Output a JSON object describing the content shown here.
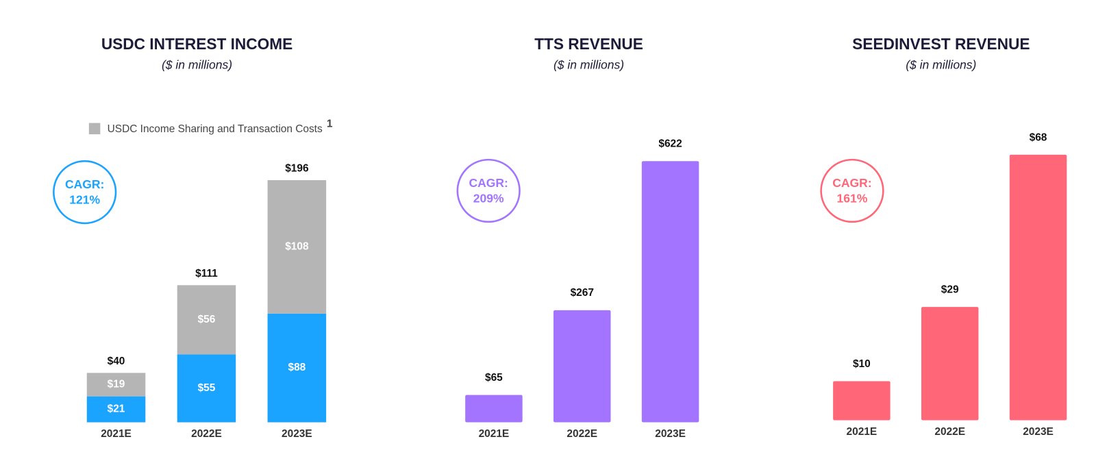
{
  "chart_data": [
    {
      "type": "stacked_bar",
      "title": "USDC INTEREST INCOME",
      "subtitle": "($ in millions)",
      "categories": [
        "2021E",
        "2022E",
        "2023E"
      ],
      "series": [
        {
          "color": "#1aa3ff",
          "values": [
            21,
            55,
            88
          ],
          "value_labels": [
            "$21",
            "$55",
            "$88"
          ]
        },
        {
          "name": "USDC Income Sharing and Transaction Costs",
          "name_note": "1",
          "color": "#b5b5b5",
          "values": [
            19,
            56,
            108
          ],
          "value_labels": [
            "$19",
            "$56",
            "$108"
          ]
        }
      ],
      "totals": [
        40,
        111,
        196
      ],
      "total_labels": [
        "$40",
        "$111",
        "$196"
      ],
      "annotation": {
        "label": "CAGR:",
        "value": "121%",
        "color": "#1aa3ff"
      }
    },
    {
      "type": "bar",
      "title": "TTS REVENUE",
      "subtitle": "($ in millions)",
      "categories": [
        "2021E",
        "2022E",
        "2023E"
      ],
      "values": [
        65,
        267,
        622
      ],
      "value_labels": [
        "$65",
        "$267",
        "$622"
      ],
      "color": "#a274ff",
      "annotation": {
        "label": "CAGR:",
        "value": "209%",
        "color": "#a274ff"
      }
    },
    {
      "type": "bar",
      "title": "SEEDINVEST REVENUE",
      "subtitle": "($ in millions)",
      "categories": [
        "2021E",
        "2022E",
        "2023E"
      ],
      "values": [
        10,
        29,
        68
      ],
      "value_labels": [
        "$10",
        "$29",
        "$68"
      ],
      "color": "#ff6678",
      "annotation": {
        "label": "CAGR:",
        "value": "161%",
        "color": "#ff6678"
      }
    }
  ]
}
